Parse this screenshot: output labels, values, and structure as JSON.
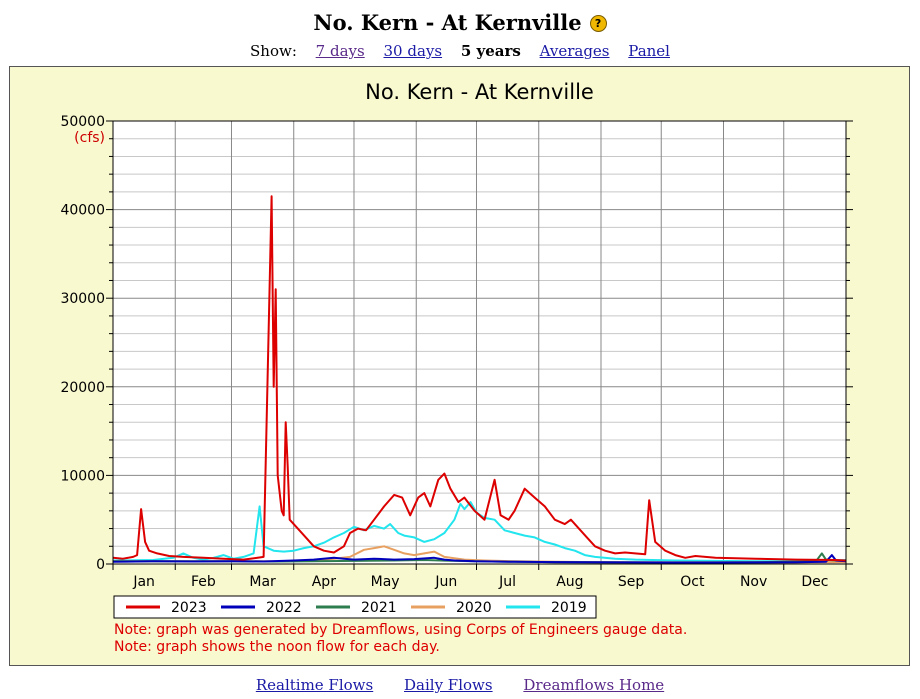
{
  "page": {
    "title": "No. Kern - At Kernville",
    "help_icon": "question-icon",
    "show_label": "Show:",
    "nav": [
      {
        "label": "7 days",
        "link": true,
        "visited": true
      },
      {
        "label": "30 days",
        "link": true,
        "visited": false
      },
      {
        "label": "5 years",
        "link": false,
        "visited": false
      },
      {
        "label": "Averages",
        "link": true,
        "visited": false
      },
      {
        "label": "Panel",
        "link": true,
        "visited": false
      }
    ],
    "footer_links": [
      {
        "label": "Realtime Flows",
        "visited": false
      },
      {
        "label": "Daily Flows",
        "visited": false
      },
      {
        "label": "Dreamflows Home",
        "visited": true
      }
    ]
  },
  "chart_data": {
    "type": "line",
    "title": "No. Kern - At Kernville",
    "ylabel": "(cfs)",
    "ylim": [
      0,
      50000
    ],
    "yticks": [
      0,
      10000,
      20000,
      30000,
      40000,
      50000
    ],
    "xlim": [
      0,
      365
    ],
    "x_unit": "day of year",
    "categories": [
      "Jan",
      "Feb",
      "Mar",
      "Apr",
      "May",
      "Jun",
      "Jul",
      "Aug",
      "Sep",
      "Oct",
      "Nov",
      "Dec"
    ],
    "grid": true,
    "legend_position": "bottom",
    "notes": [
      "Note: graph was generated by Dreamflows, using Corps of Engineers gauge data.",
      "Note: graph shows the noon flow for each day."
    ],
    "colors": {
      "axis_text": "#000000",
      "unit_text": "#cc0000",
      "note_text": "#dd0000",
      "grid": "#888888",
      "background": "#f9f9d0"
    },
    "series": [
      {
        "name": "2019",
        "color": "#22e5ee",
        "points": [
          [
            0,
            400
          ],
          [
            20,
            450
          ],
          [
            30,
            700
          ],
          [
            35,
            1200
          ],
          [
            40,
            700
          ],
          [
            45,
            500
          ],
          [
            50,
            700
          ],
          [
            55,
            1000
          ],
          [
            60,
            600
          ],
          [
            65,
            800
          ],
          [
            70,
            1200
          ],
          [
            73,
            6500
          ],
          [
            75,
            2000
          ],
          [
            80,
            1500
          ],
          [
            85,
            1400
          ],
          [
            90,
            1500
          ],
          [
            95,
            1800
          ],
          [
            100,
            2000
          ],
          [
            105,
            2400
          ],
          [
            110,
            3000
          ],
          [
            115,
            3500
          ],
          [
            120,
            4200
          ],
          [
            125,
            3800
          ],
          [
            130,
            4300
          ],
          [
            135,
            4000
          ],
          [
            138,
            4500
          ],
          [
            142,
            3500
          ],
          [
            145,
            3200
          ],
          [
            150,
            3000
          ],
          [
            155,
            2500
          ],
          [
            160,
            2800
          ],
          [
            165,
            3500
          ],
          [
            170,
            5000
          ],
          [
            173,
            6800
          ],
          [
            175,
            6200
          ],
          [
            178,
            7000
          ],
          [
            181,
            5800
          ],
          [
            185,
            5200
          ],
          [
            190,
            5000
          ],
          [
            195,
            3800
          ],
          [
            200,
            3500
          ],
          [
            205,
            3200
          ],
          [
            210,
            3000
          ],
          [
            215,
            2500
          ],
          [
            220,
            2200
          ],
          [
            225,
            1800
          ],
          [
            230,
            1500
          ],
          [
            235,
            1000
          ],
          [
            240,
            800
          ],
          [
            250,
            600
          ],
          [
            260,
            500
          ],
          [
            280,
            400
          ],
          [
            300,
            350
          ],
          [
            320,
            320
          ],
          [
            340,
            300
          ],
          [
            355,
            400
          ],
          [
            365,
            450
          ]
        ]
      },
      {
        "name": "2020",
        "color": "#e8a060",
        "points": [
          [
            0,
            300
          ],
          [
            20,
            320
          ],
          [
            40,
            300
          ],
          [
            60,
            320
          ],
          [
            80,
            300
          ],
          [
            100,
            350
          ],
          [
            110,
            600
          ],
          [
            118,
            800
          ],
          [
            125,
            1600
          ],
          [
            130,
            1800
          ],
          [
            135,
            2000
          ],
          [
            140,
            1600
          ],
          [
            145,
            1200
          ],
          [
            150,
            1000
          ],
          [
            160,
            1400
          ],
          [
            165,
            800
          ],
          [
            175,
            500
          ],
          [
            185,
            400
          ],
          [
            200,
            300
          ],
          [
            220,
            250
          ],
          [
            240,
            220
          ],
          [
            260,
            200
          ],
          [
            280,
            200
          ],
          [
            300,
            200
          ],
          [
            320,
            200
          ],
          [
            340,
            200
          ],
          [
            365,
            220
          ]
        ]
      },
      {
        "name": "2021",
        "color": "#2e7d4f",
        "points": [
          [
            0,
            300
          ],
          [
            20,
            320
          ],
          [
            40,
            300
          ],
          [
            60,
            300
          ],
          [
            80,
            280
          ],
          [
            100,
            300
          ],
          [
            120,
            350
          ],
          [
            140,
            400
          ],
          [
            155,
            450
          ],
          [
            165,
            380
          ],
          [
            180,
            300
          ],
          [
            200,
            250
          ],
          [
            220,
            220
          ],
          [
            240,
            200
          ],
          [
            260,
            180
          ],
          [
            280,
            170
          ],
          [
            300,
            180
          ],
          [
            320,
            200
          ],
          [
            340,
            250
          ],
          [
            350,
            300
          ],
          [
            353,
            1200
          ],
          [
            355,
            500
          ],
          [
            360,
            400
          ],
          [
            365,
            350
          ]
        ]
      },
      {
        "name": "2022",
        "color": "#0000bb",
        "points": [
          [
            0,
            250
          ],
          [
            20,
            300
          ],
          [
            40,
            280
          ],
          [
            60,
            300
          ],
          [
            75,
            280
          ],
          [
            90,
            400
          ],
          [
            100,
            500
          ],
          [
            110,
            700
          ],
          [
            115,
            600
          ],
          [
            120,
            500
          ],
          [
            130,
            600
          ],
          [
            140,
            500
          ],
          [
            150,
            550
          ],
          [
            160,
            700
          ],
          [
            165,
            500
          ],
          [
            170,
            400
          ],
          [
            180,
            300
          ],
          [
            200,
            250
          ],
          [
            220,
            220
          ],
          [
            240,
            200
          ],
          [
            260,
            180
          ],
          [
            280,
            170
          ],
          [
            300,
            170
          ],
          [
            320,
            180
          ],
          [
            340,
            200
          ],
          [
            355,
            250
          ],
          [
            358,
            1000
          ],
          [
            360,
            400
          ],
          [
            365,
            300
          ]
        ]
      },
      {
        "name": "2023",
        "color": "#dd0000",
        "points": [
          [
            0,
            700
          ],
          [
            5,
            600
          ],
          [
            10,
            800
          ],
          [
            12,
            1000
          ],
          [
            14,
            6200
          ],
          [
            16,
            2500
          ],
          [
            18,
            1500
          ],
          [
            22,
            1200
          ],
          [
            28,
            900
          ],
          [
            35,
            800
          ],
          [
            45,
            700
          ],
          [
            55,
            600
          ],
          [
            65,
            500
          ],
          [
            72,
            700
          ],
          [
            75,
            800
          ],
          [
            77,
            21000
          ],
          [
            79,
            41500
          ],
          [
            80,
            20000
          ],
          [
            81,
            31000
          ],
          [
            82,
            10000
          ],
          [
            84,
            6000
          ],
          [
            85,
            5500
          ],
          [
            86,
            16000
          ],
          [
            87,
            11000
          ],
          [
            88,
            5000
          ],
          [
            92,
            4000
          ],
          [
            96,
            3000
          ],
          [
            100,
            2000
          ],
          [
            105,
            1500
          ],
          [
            110,
            1300
          ],
          [
            115,
            2000
          ],
          [
            118,
            3500
          ],
          [
            122,
            4000
          ],
          [
            126,
            3800
          ],
          [
            130,
            5000
          ],
          [
            135,
            6500
          ],
          [
            140,
            7800
          ],
          [
            144,
            7500
          ],
          [
            148,
            5500
          ],
          [
            152,
            7500
          ],
          [
            155,
            8000
          ],
          [
            158,
            6500
          ],
          [
            162,
            9500
          ],
          [
            165,
            10200
          ],
          [
            168,
            8500
          ],
          [
            172,
            7000
          ],
          [
            175,
            7500
          ],
          [
            180,
            6000
          ],
          [
            185,
            5000
          ],
          [
            190,
            9500
          ],
          [
            193,
            5500
          ],
          [
            197,
            5000
          ],
          [
            200,
            6000
          ],
          [
            205,
            8500
          ],
          [
            210,
            7500
          ],
          [
            215,
            6500
          ],
          [
            220,
            5000
          ],
          [
            225,
            4500
          ],
          [
            228,
            5000
          ],
          [
            232,
            4000
          ],
          [
            236,
            3000
          ],
          [
            240,
            2000
          ],
          [
            245,
            1500
          ],
          [
            250,
            1200
          ],
          [
            255,
            1300
          ],
          [
            260,
            1200
          ],
          [
            265,
            1100
          ],
          [
            267,
            7200
          ],
          [
            270,
            2500
          ],
          [
            275,
            1500
          ],
          [
            280,
            1000
          ],
          [
            285,
            700
          ],
          [
            290,
            900
          ],
          [
            300,
            700
          ],
          [
            320,
            600
          ],
          [
            340,
            500
          ],
          [
            360,
            450
          ],
          [
            365,
            400
          ]
        ]
      }
    ]
  }
}
